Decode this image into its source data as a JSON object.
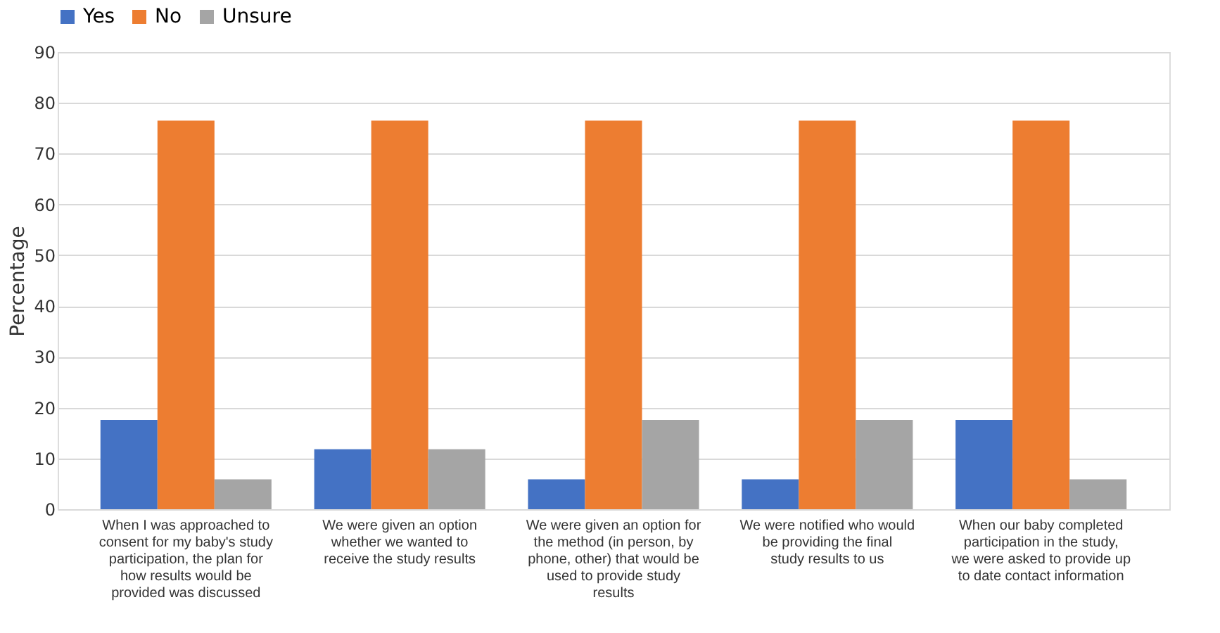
{
  "chart_data": {
    "type": "bar",
    "ylabel": "Percentage",
    "categories": [
      "When I was approached to consent for my baby's study participation, the plan for how results would be provided was discussed",
      "We were given an option whether we wanted to receive the study results",
      "We were given an option for the method (in person, by phone, other) that would be used to provide study results",
      "We were notified who would be providing the final study results to us",
      "When our baby completed participation in the study, we were asked to provide up to date contact information"
    ],
    "series": [
      {
        "name": "Yes",
        "color": "#4472c4",
        "values": [
          17.6,
          11.8,
          5.9,
          5.9,
          17.6
        ]
      },
      {
        "name": "No",
        "color": "#ed7d31",
        "values": [
          76.5,
          76.5,
          76.5,
          76.5,
          76.5
        ]
      },
      {
        "name": "Unsure",
        "color": "#a5a5a5",
        "values": [
          5.9,
          11.8,
          17.6,
          17.6,
          5.9
        ]
      }
    ],
    "ylim": [
      0,
      90
    ],
    "yticks": [
      0,
      10,
      20,
      30,
      40,
      50,
      60,
      70,
      80,
      90
    ],
    "grid": "y",
    "legend": "top"
  }
}
